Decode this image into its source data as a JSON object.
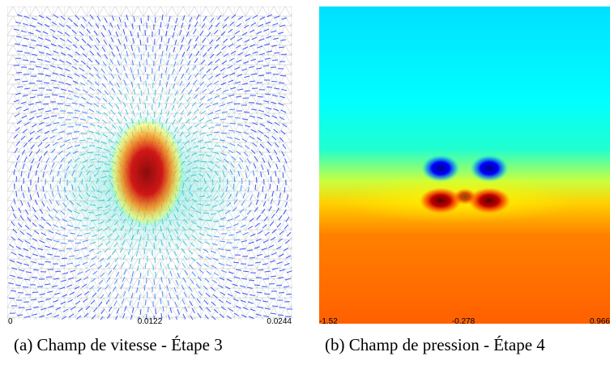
{
  "panels": [
    {
      "caption": "(a) Champ de vitesse - Étape 3",
      "colorbar": {
        "min_label": "0",
        "mid_label": "0.0122",
        "max_label": "0.0244"
      }
    },
    {
      "caption": "(b) Champ de pression - Étape 4",
      "colorbar": {
        "min_label": "-1.52",
        "mid_label": "-0.278",
        "max_label": "0.966"
      }
    }
  ],
  "colormap": [
    "#00008f",
    "#0000ff",
    "#0080ff",
    "#00ffff",
    "#80ff80",
    "#ffff00",
    "#ff8000",
    "#ff0000",
    "#800000"
  ]
}
